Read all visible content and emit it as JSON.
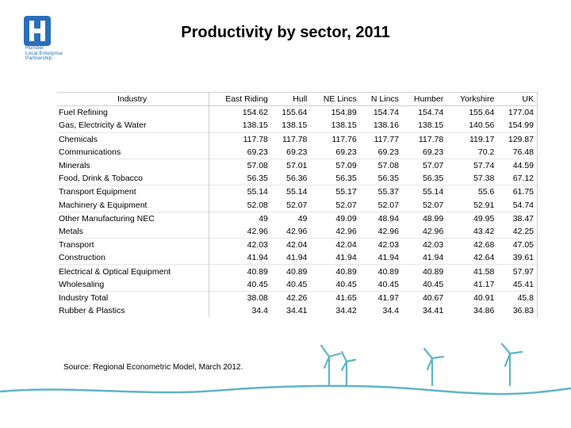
{
  "logo": {
    "text": "Humber\nLocal Enterprise\nPartnership"
  },
  "chart_data": {
    "type": "table",
    "title": "Productivity by sector, 2011",
    "columns": [
      "Industry",
      "East Riding",
      "Hull",
      "NE Lincs",
      "N Lincs",
      "Humber",
      "Yorkshire",
      "UK"
    ],
    "rows": [
      [
        "Fuel Refining",
        "154.62",
        "155.64",
        "154.89",
        "154.74",
        "154.74",
        "155.64",
        "177.04"
      ],
      [
        "Gas, Electricity & Water",
        "138.15",
        "138.15",
        "138.15",
        "138.16",
        "138.15",
        "140.56",
        "154.99"
      ],
      [
        "Chemicals",
        "117.78",
        "117.78",
        "117.76",
        "117.77",
        "117.78",
        "119.17",
        "129.87"
      ],
      [
        "Communications",
        "69.23",
        "69.23",
        "69.23",
        "69.23",
        "69.23",
        "70.2",
        "76.48"
      ],
      [
        "Minerals",
        "57.08",
        "57.01",
        "57.09",
        "57.08",
        "57.07",
        "57.74",
        "44.59"
      ],
      [
        "Food, Drink & Tobacco",
        "56.35",
        "56.36",
        "56.35",
        "56.35",
        "56.35",
        "57.38",
        "67.12"
      ],
      [
        "Transport Equipment",
        "55.14",
        "55.14",
        "55.17",
        "55.37",
        "55.14",
        "55.6",
        "61.75"
      ],
      [
        "Machinery & Equipment",
        "52.08",
        "52.07",
        "52.07",
        "52.07",
        "52.07",
        "52.91",
        "54.74"
      ],
      [
        "Other Manufacturing NEC",
        "49",
        "49",
        "49.09",
        "48.94",
        "48.99",
        "49.95",
        "38.47"
      ],
      [
        "Metals",
        "42.96",
        "42.96",
        "42.96",
        "42.96",
        "42.96",
        "43.42",
        "42.25"
      ],
      [
        "Transport",
        "42.03",
        "42.04",
        "42.04",
        "42.03",
        "42.03",
        "42.68",
        "47.05"
      ],
      [
        "Construction",
        "41.94",
        "41.94",
        "41.94",
        "41.94",
        "41.94",
        "42.64",
        "39.61"
      ],
      [
        "Electrical & Optical Equipment",
        "40.89",
        "40.89",
        "40.89",
        "40.89",
        "40.89",
        "41.58",
        "57.97"
      ],
      [
        "Wholesaling",
        "40.45",
        "40.45",
        "40.45",
        "40.45",
        "40.45",
        "41.17",
        "45.41"
      ],
      [
        "Industry Total",
        "38.08",
        "42.26",
        "41.65",
        "41.97",
        "40.67",
        "40.91",
        "45.8"
      ],
      [
        "Rubber & Plastics",
        "34.4",
        "34.41",
        "34.42",
        "34.4",
        "34.41",
        "34.86",
        "36.83"
      ]
    ]
  },
  "source": "Source: Regional Econometric Model, March 2012.",
  "colors": {
    "brand": "#2a6fb8",
    "turbine": "#5fb4c6"
  }
}
